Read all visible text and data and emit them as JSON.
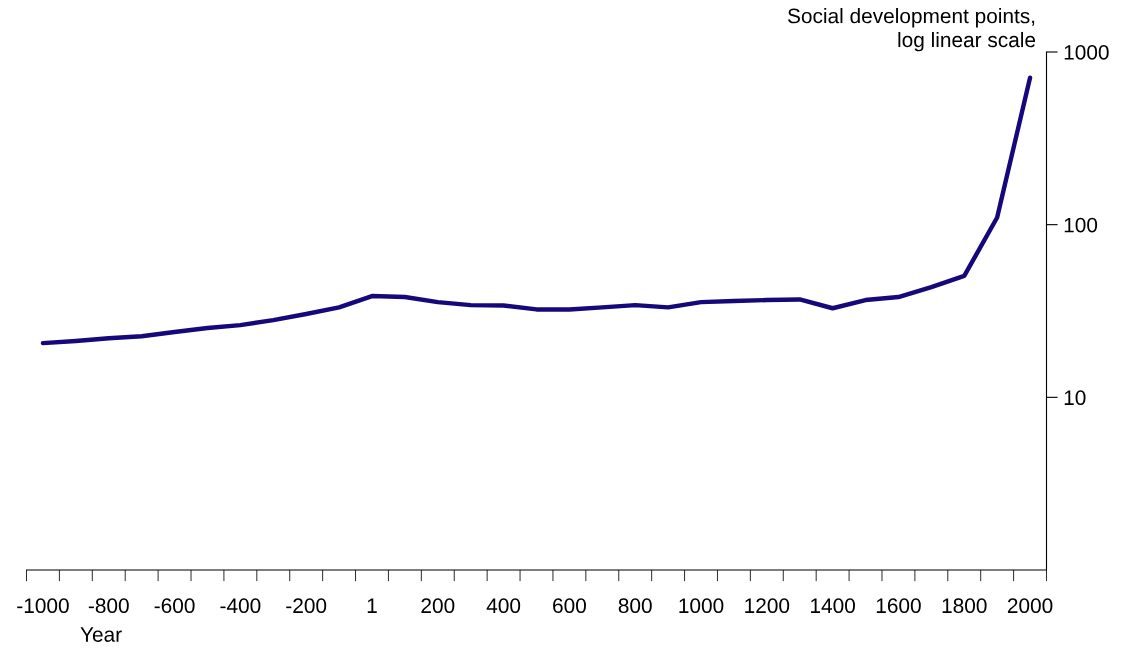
{
  "chart_data": {
    "type": "line",
    "xlabel": "Year",
    "ylabel": "Social development points,\nlog linear scale",
    "categories": [
      "-1000",
      null,
      "-800",
      null,
      "-600",
      null,
      "-400",
      null,
      "-200",
      null,
      "1",
      null,
      "200",
      null,
      "400",
      null,
      "600",
      null,
      "800",
      null,
      "1000",
      null,
      "1200",
      null,
      "1400",
      null,
      "1600",
      null,
      "1800",
      null,
      "2000"
    ],
    "series": [
      {
        "color": "#16087a",
        "values": [
          20.6,
          21.2,
          22.0,
          22.6,
          23.9,
          25.2,
          26.2,
          28.0,
          30.4,
          33.2,
          38.6,
          38.1,
          35.6,
          34.2,
          34.0,
          32.3,
          32.3,
          33.2,
          34.2,
          33.2,
          35.6,
          36.1,
          36.6,
          36.9,
          32.8,
          36.6,
          38.1,
          43.5,
          50.5,
          110,
          710
        ]
      }
    ],
    "log": "y",
    "ylim": [
      1,
      1000
    ],
    "yticks": [
      10,
      100,
      1000
    ],
    "grid": false,
    "legend": false,
    "marker": "none",
    "line_style": "solid"
  }
}
